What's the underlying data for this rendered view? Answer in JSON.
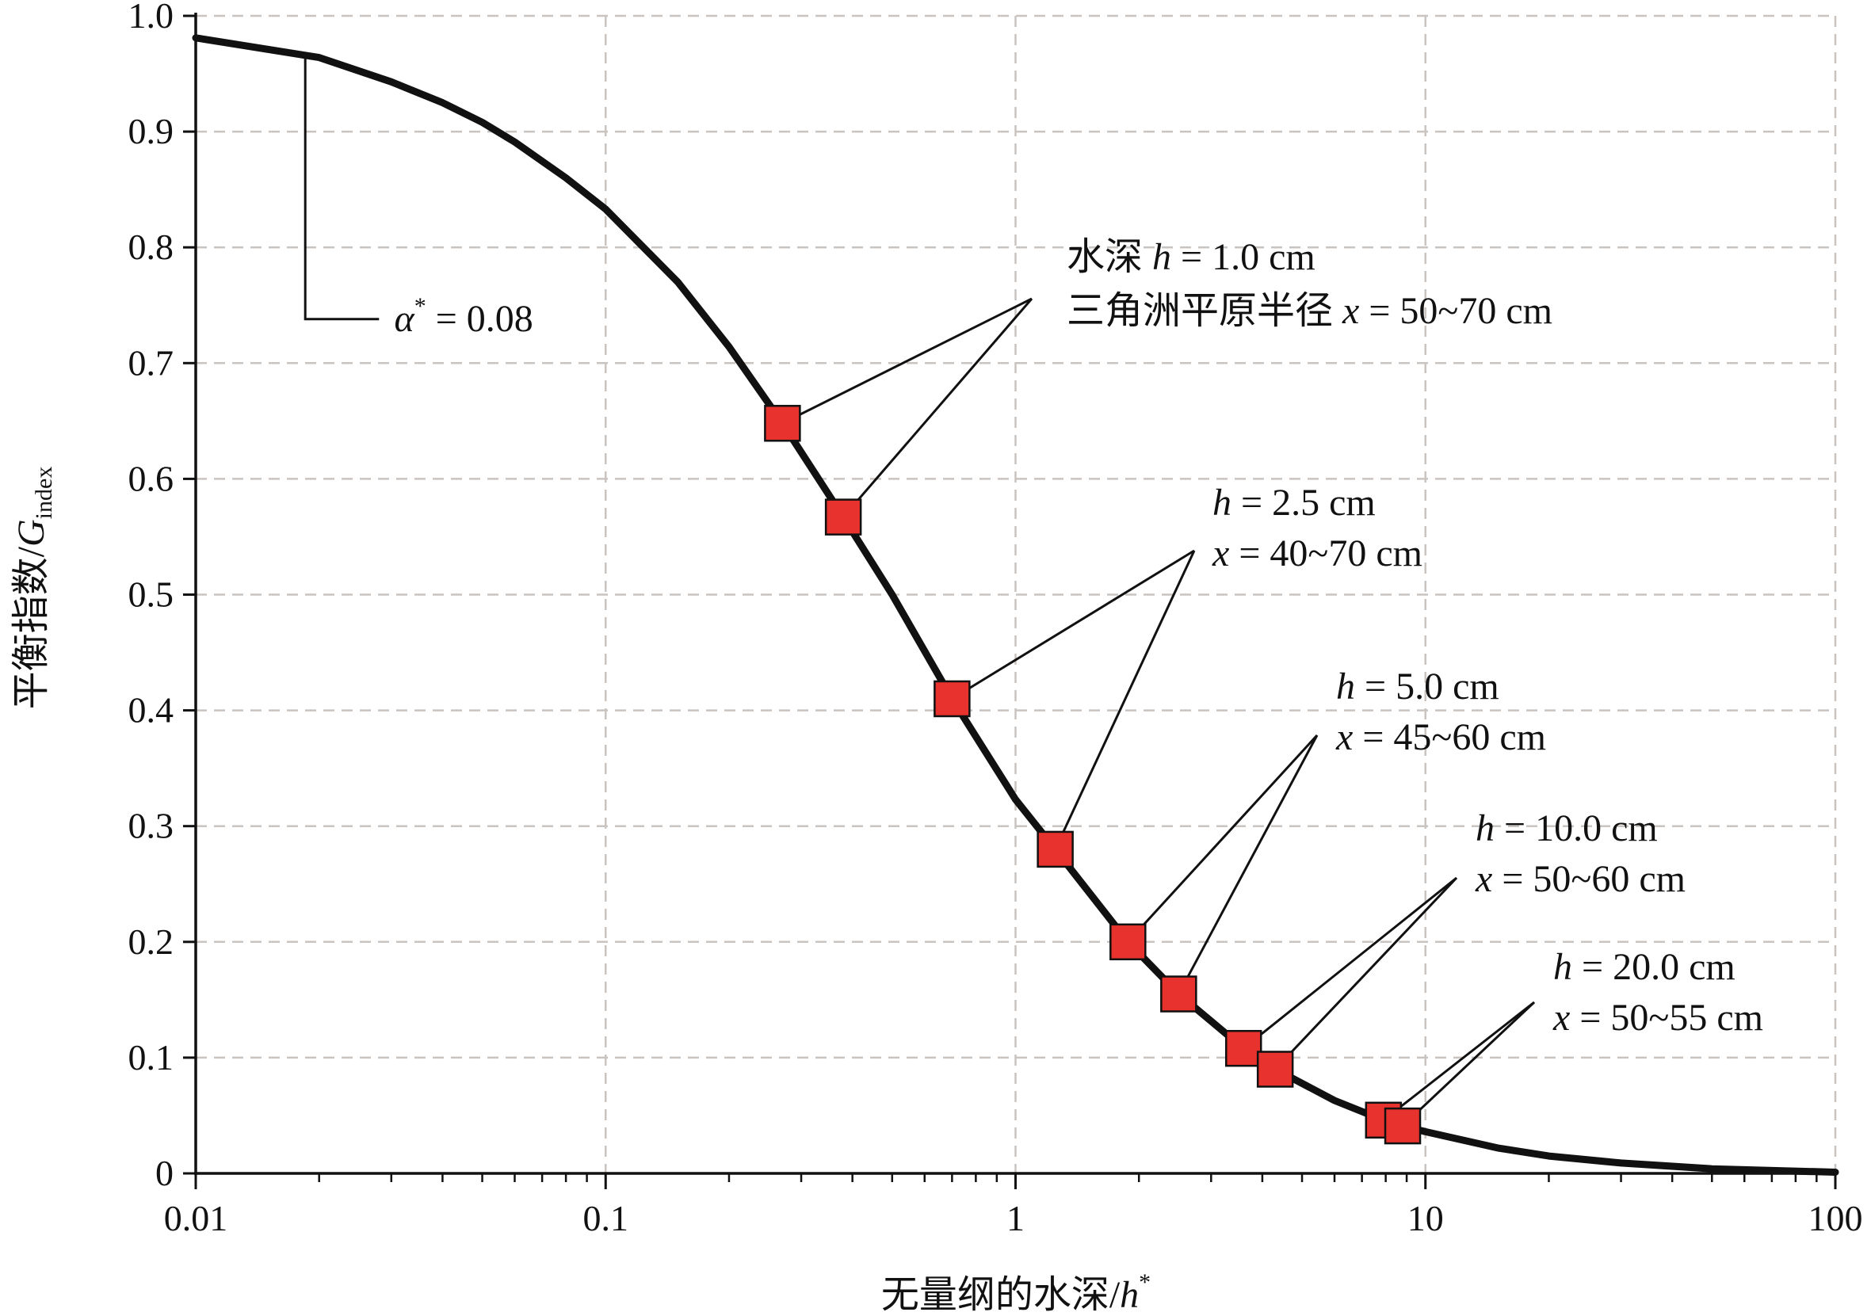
{
  "chart_data": {
    "type": "line",
    "x_scale": "log",
    "xlim": [
      0.01,
      100
    ],
    "ylim": [
      0,
      1.0
    ],
    "grid": true,
    "xlabel": {
      "main": "无量纲的水深/",
      "var": "h",
      "sup": "*"
    },
    "ylabel": {
      "main": "平衡指数/",
      "var": "G",
      "sub": "index"
    },
    "x_ticks": [
      {
        "value": 0.01,
        "label": "0.01"
      },
      {
        "value": 0.1,
        "label": "0.1"
      },
      {
        "value": 1,
        "label": "1"
      },
      {
        "value": 10,
        "label": "10"
      },
      {
        "value": 100,
        "label": "100"
      }
    ],
    "y_ticks": [
      {
        "value": 0,
        "label": "0"
      },
      {
        "value": 0.1,
        "label": "0.1"
      },
      {
        "value": 0.2,
        "label": "0.2"
      },
      {
        "value": 0.3,
        "label": "0.3"
      },
      {
        "value": 0.4,
        "label": "0.4"
      },
      {
        "value": 0.5,
        "label": "0.5"
      },
      {
        "value": 0.6,
        "label": "0.6"
      },
      {
        "value": 0.7,
        "label": "0.7"
      },
      {
        "value": 0.8,
        "label": "0.8"
      },
      {
        "value": 0.9,
        "label": "0.9"
      },
      {
        "value": 1.0,
        "label": "1.0"
      }
    ],
    "curve": {
      "x": [
        0.01,
        0.02,
        0.03,
        0.04,
        0.05,
        0.06,
        0.08,
        0.1,
        0.15,
        0.2,
        0.27,
        0.38,
        0.5,
        0.7,
        1.0,
        1.25,
        1.88,
        2.5,
        3.6,
        4.3,
        6.0,
        7.9,
        8.8,
        10,
        15,
        20,
        30,
        50,
        100
      ],
      "y": [
        0.981,
        0.964,
        0.943,
        0.925,
        0.908,
        0.891,
        0.86,
        0.833,
        0.77,
        0.714,
        0.648,
        0.567,
        0.5,
        0.41,
        0.323,
        0.28,
        0.2,
        0.155,
        0.108,
        0.09,
        0.063,
        0.046,
        0.041,
        0.036,
        0.022,
        0.015,
        0.009,
        0.004,
        0.001
      ]
    },
    "markers": [
      {
        "x": 0.27,
        "y": 0.648
      },
      {
        "x": 0.38,
        "y": 0.567
      },
      {
        "x": 0.7,
        "y": 0.41
      },
      {
        "x": 1.25,
        "y": 0.28
      },
      {
        "x": 1.88,
        "y": 0.2
      },
      {
        "x": 2.5,
        "y": 0.155
      },
      {
        "x": 3.6,
        "y": 0.108
      },
      {
        "x": 4.3,
        "y": 0.09
      },
      {
        "x": 7.9,
        "y": 0.046
      },
      {
        "x": 8.8,
        "y": 0.041
      }
    ],
    "marker_color": "#e8322d",
    "line_color": "#111111",
    "grid_color": "#c9c4c0",
    "slope_annotation": {
      "sym": "α",
      "sup": "*",
      "rest": " = 0.08"
    },
    "annotations": [
      {
        "line1": {
          "pre": "水深 ",
          "var": "h",
          "rest": " = 1.0 cm"
        },
        "line2": {
          "pre": "三角洲平原半径 ",
          "var": "x",
          "rest": " = 50~70 cm"
        },
        "targets": [
          0,
          1
        ]
      },
      {
        "line1": {
          "pre": "",
          "var": "h",
          "rest": " = 2.5 cm"
        },
        "line2": {
          "pre": "",
          "var": "x",
          "rest": " = 40~70 cm"
        },
        "targets": [
          2,
          3
        ]
      },
      {
        "line1": {
          "pre": "",
          "var": "h",
          "rest": " = 5.0 cm"
        },
        "line2": {
          "pre": "",
          "var": "x",
          "rest": " = 45~60 cm"
        },
        "targets": [
          4,
          5
        ]
      },
      {
        "line1": {
          "pre": "",
          "var": "h",
          "rest": " = 10.0 cm"
        },
        "line2": {
          "pre": "",
          "var": "x",
          "rest": " = 50~60 cm"
        },
        "targets": [
          6,
          7
        ]
      },
      {
        "line1": {
          "pre": "",
          "var": "h",
          "rest": " = 20.0 cm"
        },
        "line2": {
          "pre": "",
          "var": "x",
          "rest": " = 50~55 cm"
        },
        "targets": [
          8,
          9
        ]
      }
    ]
  }
}
